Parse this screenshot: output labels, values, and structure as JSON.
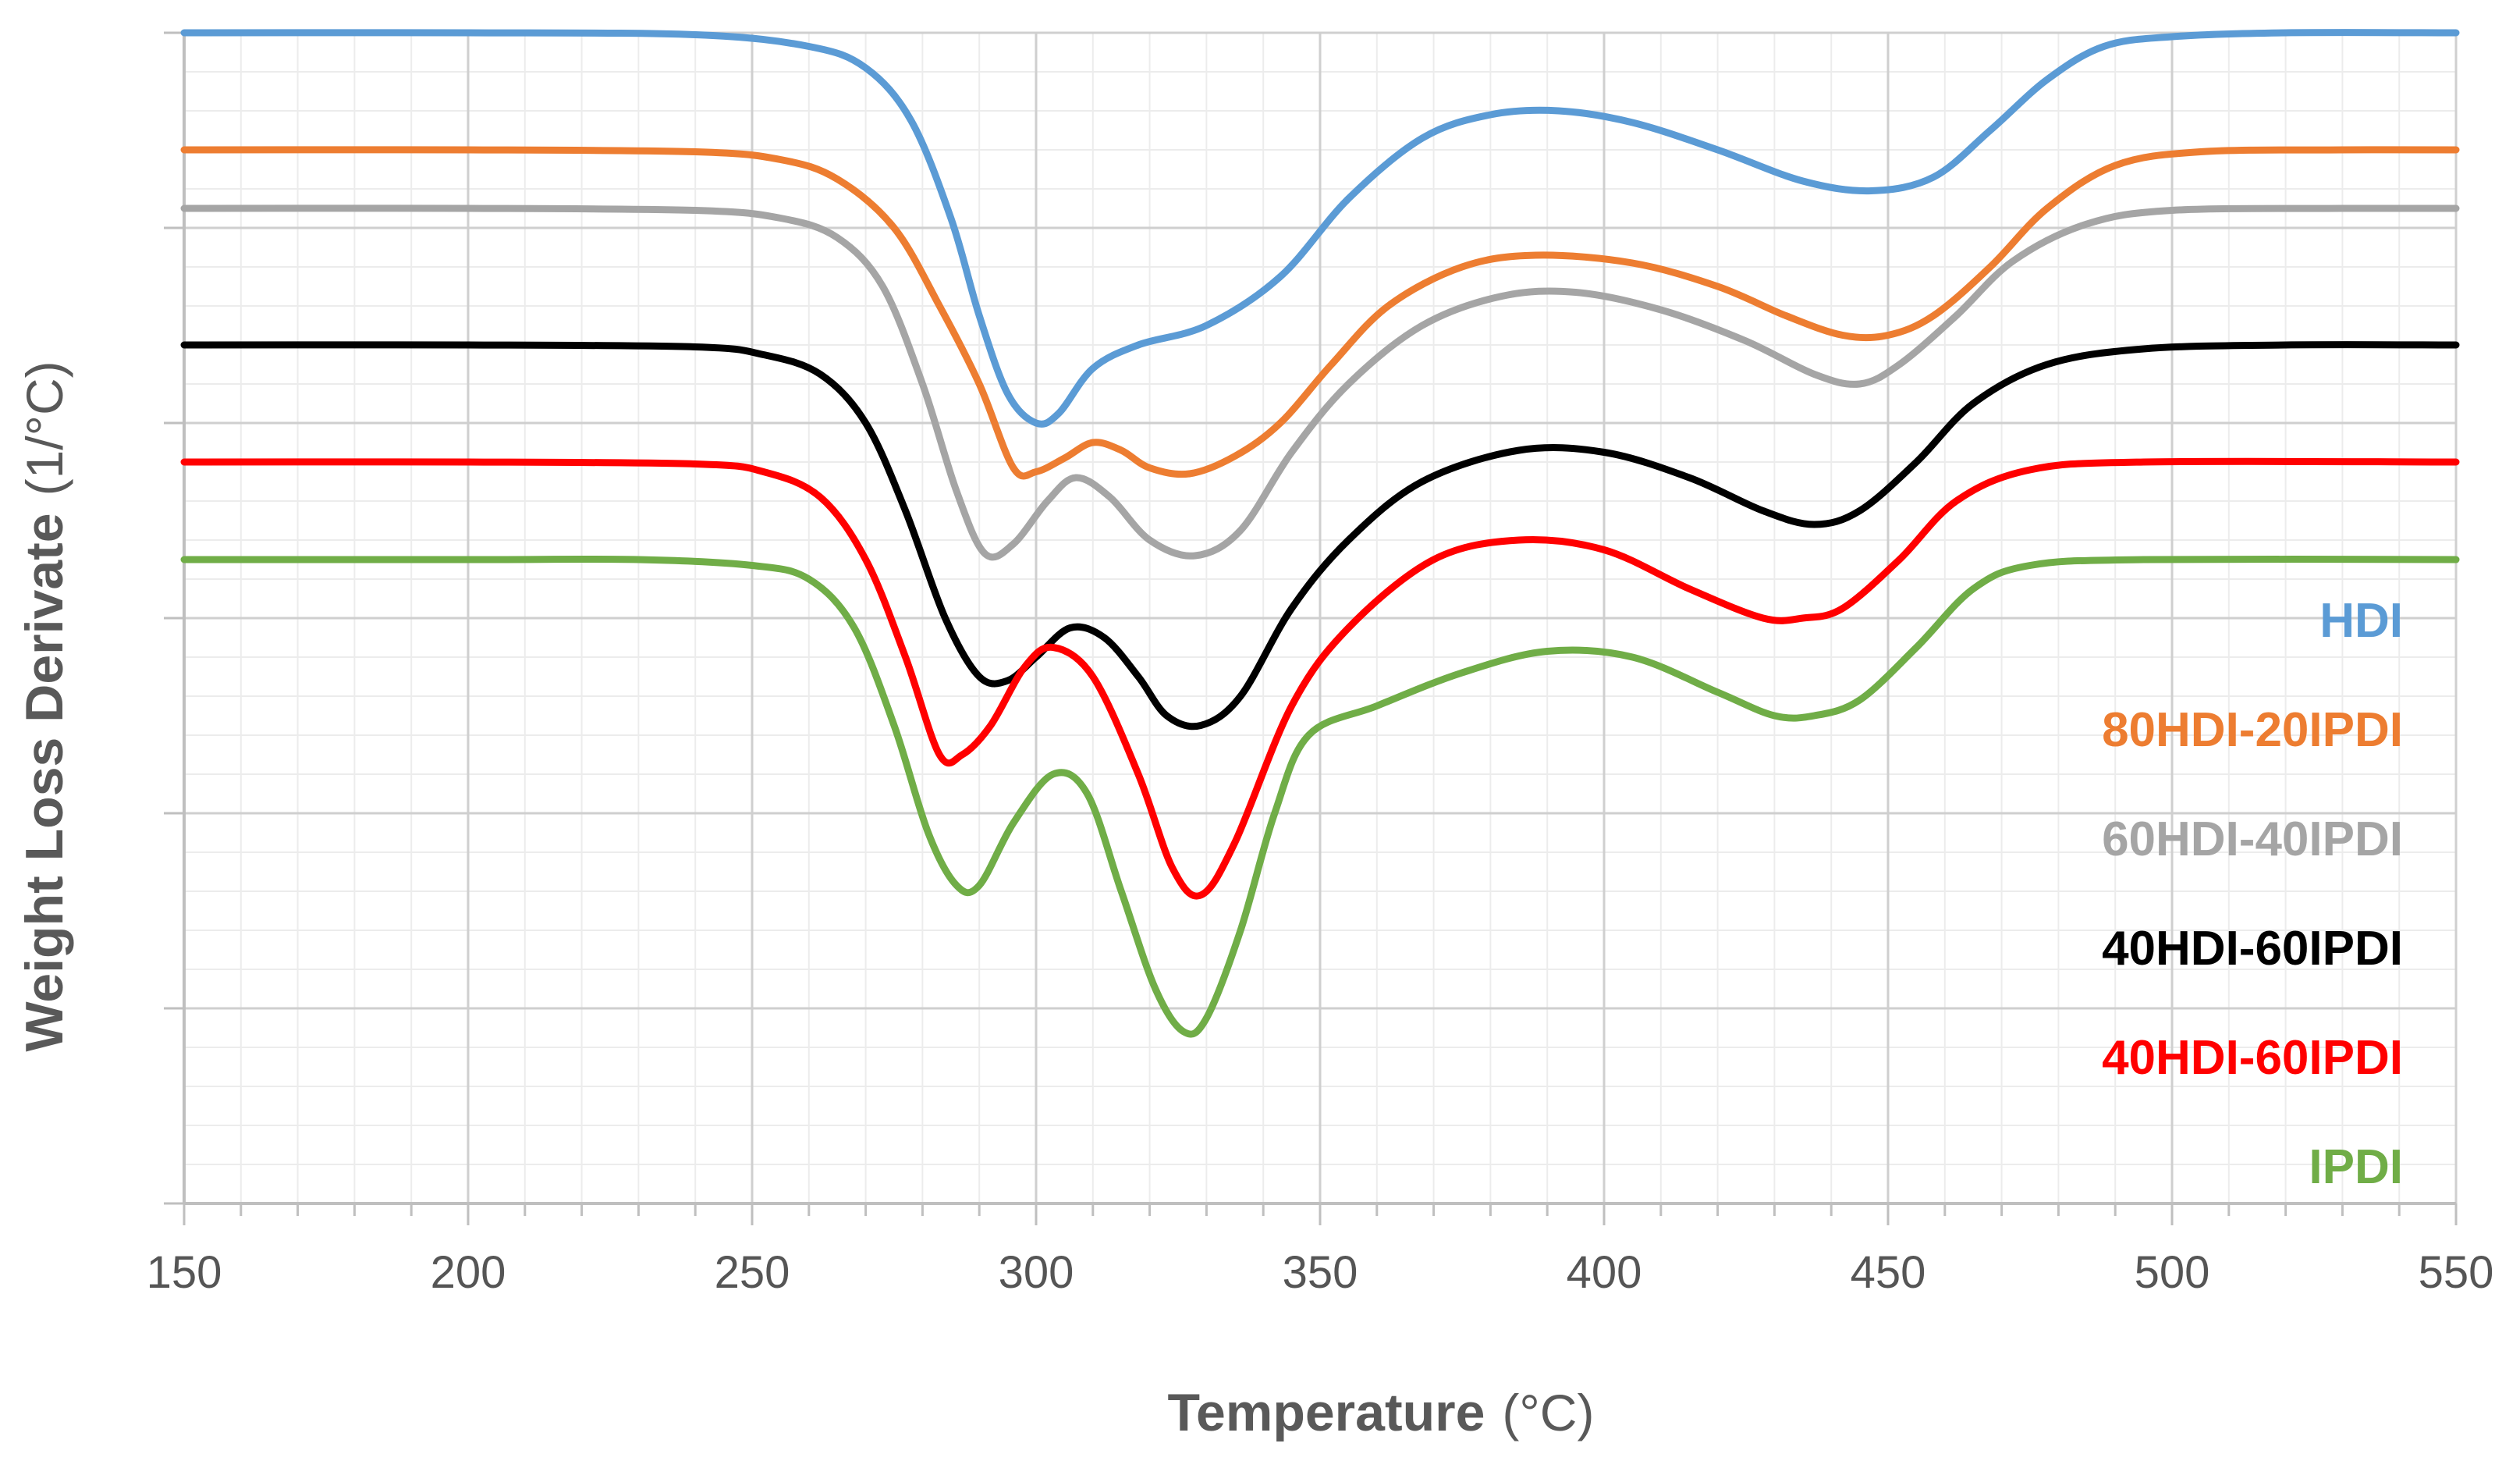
{
  "chart_data": {
    "type": "line",
    "xlabel": "Temperature",
    "xlabel_unit": "(°C)",
    "ylabel": "Weight  Loss Derivate",
    "ylabel_unit": "(1/°C)",
    "xlim": [
      150,
      550
    ],
    "x_ticks": [
      150,
      200,
      250,
      300,
      350,
      400,
      450,
      500,
      550
    ],
    "y_tick_labels": "none",
    "ylim": [
      0,
      6
    ],
    "grid": "major and minor",
    "legend_position": "right, stacked vertically",
    "series": [
      {
        "name": "HDI",
        "color": "#5B9BD5",
        "points": [
          [
            150,
            6.0
          ],
          [
            200,
            6.0
          ],
          [
            240,
            5.99
          ],
          [
            260,
            5.93
          ],
          [
            270,
            5.82
          ],
          [
            278,
            5.55
          ],
          [
            285,
            5.05
          ],
          [
            290,
            4.55
          ],
          [
            295,
            4.15
          ],
          [
            300,
            4.0
          ],
          [
            304,
            4.05
          ],
          [
            310,
            4.28
          ],
          [
            318,
            4.4
          ],
          [
            330,
            4.5
          ],
          [
            343,
            4.75
          ],
          [
            355,
            5.15
          ],
          [
            368,
            5.46
          ],
          [
            380,
            5.58
          ],
          [
            392,
            5.6
          ],
          [
            405,
            5.54
          ],
          [
            420,
            5.4
          ],
          [
            435,
            5.24
          ],
          [
            447,
            5.19
          ],
          [
            458,
            5.26
          ],
          [
            468,
            5.5
          ],
          [
            478,
            5.76
          ],
          [
            488,
            5.93
          ],
          [
            500,
            5.98
          ],
          [
            520,
            6.0
          ],
          [
            550,
            6.0
          ]
        ]
      },
      {
        "name": "80HDI-20IPDI",
        "color": "#ED7D31",
        "points": [
          [
            150,
            5.4
          ],
          [
            200,
            5.4
          ],
          [
            240,
            5.39
          ],
          [
            255,
            5.35
          ],
          [
            265,
            5.25
          ],
          [
            275,
            5.0
          ],
          [
            283,
            4.6
          ],
          [
            290,
            4.2
          ],
          [
            296,
            3.77
          ],
          [
            300,
            3.75
          ],
          [
            305,
            3.82
          ],
          [
            310,
            3.9
          ],
          [
            315,
            3.86
          ],
          [
            320,
            3.77
          ],
          [
            327,
            3.74
          ],
          [
            335,
            3.83
          ],
          [
            343,
            4.0
          ],
          [
            352,
            4.3
          ],
          [
            362,
            4.6
          ],
          [
            375,
            4.8
          ],
          [
            388,
            4.86
          ],
          [
            405,
            4.82
          ],
          [
            420,
            4.7
          ],
          [
            432,
            4.55
          ],
          [
            442,
            4.45
          ],
          [
            450,
            4.45
          ],
          [
            458,
            4.55
          ],
          [
            468,
            4.8
          ],
          [
            478,
            5.1
          ],
          [
            490,
            5.32
          ],
          [
            505,
            5.39
          ],
          [
            530,
            5.4
          ],
          [
            550,
            5.4
          ]
        ]
      },
      {
        "name": "60HDI-40IPDI",
        "color": "#A5A5A5",
        "points": [
          [
            150,
            5.1
          ],
          [
            200,
            5.1
          ],
          [
            240,
            5.09
          ],
          [
            255,
            5.05
          ],
          [
            265,
            4.95
          ],
          [
            273,
            4.7
          ],
          [
            280,
            4.2
          ],
          [
            286,
            3.65
          ],
          [
            291,
            3.33
          ],
          [
            296,
            3.38
          ],
          [
            302,
            3.6
          ],
          [
            307,
            3.72
          ],
          [
            313,
            3.62
          ],
          [
            320,
            3.4
          ],
          [
            328,
            3.32
          ],
          [
            336,
            3.45
          ],
          [
            345,
            3.85
          ],
          [
            355,
            4.2
          ],
          [
            368,
            4.5
          ],
          [
            382,
            4.65
          ],
          [
            395,
            4.67
          ],
          [
            410,
            4.58
          ],
          [
            425,
            4.42
          ],
          [
            437,
            4.25
          ],
          [
            445,
            4.2
          ],
          [
            452,
            4.3
          ],
          [
            462,
            4.55
          ],
          [
            472,
            4.83
          ],
          [
            485,
            5.02
          ],
          [
            500,
            5.09
          ],
          [
            530,
            5.1
          ],
          [
            550,
            5.1
          ]
        ]
      },
      {
        "name": "40HDI-60IPDI",
        "color": "#000000",
        "points": [
          [
            150,
            4.4
          ],
          [
            200,
            4.4
          ],
          [
            240,
            4.39
          ],
          [
            252,
            4.35
          ],
          [
            262,
            4.25
          ],
          [
            270,
            4.0
          ],
          [
            277,
            3.55
          ],
          [
            284,
            3.0
          ],
          [
            290,
            2.7
          ],
          [
            295,
            2.68
          ],
          [
            300,
            2.8
          ],
          [
            306,
            2.95
          ],
          [
            312,
            2.9
          ],
          [
            318,
            2.7
          ],
          [
            323,
            2.5
          ],
          [
            329,
            2.45
          ],
          [
            336,
            2.6
          ],
          [
            345,
            3.05
          ],
          [
            355,
            3.4
          ],
          [
            368,
            3.7
          ],
          [
            385,
            3.86
          ],
          [
            400,
            3.85
          ],
          [
            415,
            3.72
          ],
          [
            428,
            3.55
          ],
          [
            437,
            3.48
          ],
          [
            445,
            3.55
          ],
          [
            455,
            3.8
          ],
          [
            465,
            4.1
          ],
          [
            478,
            4.3
          ],
          [
            495,
            4.38
          ],
          [
            520,
            4.4
          ],
          [
            550,
            4.4
          ]
        ]
      },
      {
        "name": "40HDI-60IPDI",
        "color": "#FF0000",
        "points": [
          [
            150,
            3.8
          ],
          [
            200,
            3.8
          ],
          [
            240,
            3.79
          ],
          [
            252,
            3.75
          ],
          [
            262,
            3.62
          ],
          [
            270,
            3.3
          ],
          [
            277,
            2.8
          ],
          [
            283,
            2.3
          ],
          [
            287,
            2.3
          ],
          [
            292,
            2.45
          ],
          [
            298,
            2.75
          ],
          [
            303,
            2.85
          ],
          [
            310,
            2.7
          ],
          [
            318,
            2.2
          ],
          [
            324,
            1.72
          ],
          [
            329,
            1.58
          ],
          [
            335,
            1.85
          ],
          [
            345,
            2.55
          ],
          [
            355,
            2.95
          ],
          [
            370,
            3.3
          ],
          [
            385,
            3.4
          ],
          [
            400,
            3.35
          ],
          [
            415,
            3.15
          ],
          [
            428,
            3.0
          ],
          [
            435,
            3.0
          ],
          [
            442,
            3.05
          ],
          [
            452,
            3.3
          ],
          [
            462,
            3.6
          ],
          [
            475,
            3.76
          ],
          [
            495,
            3.8
          ],
          [
            550,
            3.8
          ]
        ]
      },
      {
        "name": "IPDI",
        "color": "#70AD47",
        "points": [
          [
            150,
            3.3
          ],
          [
            200,
            3.3
          ],
          [
            230,
            3.3
          ],
          [
            250,
            3.27
          ],
          [
            260,
            3.2
          ],
          [
            268,
            2.95
          ],
          [
            275,
            2.45
          ],
          [
            281,
            1.9
          ],
          [
            286,
            1.63
          ],
          [
            290,
            1.63
          ],
          [
            296,
            1.95
          ],
          [
            303,
            2.2
          ],
          [
            309,
            2.1
          ],
          [
            315,
            1.6
          ],
          [
            321,
            1.1
          ],
          [
            326,
            0.88
          ],
          [
            330,
            0.95
          ],
          [
            336,
            1.4
          ],
          [
            342,
            2.0
          ],
          [
            348,
            2.4
          ],
          [
            360,
            2.55
          ],
          [
            375,
            2.72
          ],
          [
            390,
            2.83
          ],
          [
            405,
            2.8
          ],
          [
            420,
            2.62
          ],
          [
            430,
            2.5
          ],
          [
            437,
            2.5
          ],
          [
            445,
            2.58
          ],
          [
            455,
            2.85
          ],
          [
            465,
            3.15
          ],
          [
            475,
            3.27
          ],
          [
            495,
            3.3
          ],
          [
            550,
            3.3
          ]
        ]
      }
    ]
  }
}
